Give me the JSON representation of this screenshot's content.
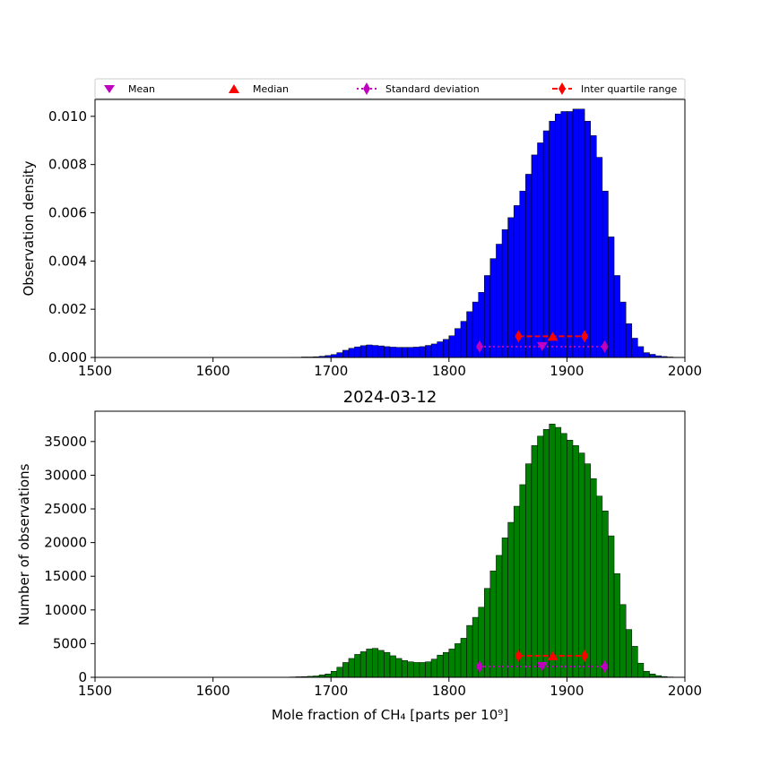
{
  "legend": {
    "mean": "Mean",
    "median": "Median",
    "std": "Standard deviation",
    "iqr": "Inter quartile range"
  },
  "colors": {
    "density_bars": "#0000ff",
    "count_bars": "#008000",
    "mean": "#bf00bf",
    "median": "#ff0000",
    "std": "#bf00bf",
    "iqr": "#ff0000"
  },
  "chart_data": [
    {
      "type": "bar",
      "panel": "density",
      "title": "",
      "xlabel": "",
      "ylabel": "Observation density",
      "xlim": [
        1500,
        2000
      ],
      "ylim": [
        0,
        0.0107
      ],
      "xticks": [
        1500,
        1600,
        1700,
        1800,
        1900,
        2000
      ],
      "yticks": [
        0,
        0.002,
        0.004,
        0.006,
        0.008,
        0.01
      ],
      "ytick_labels": [
        "0.000",
        "0.002",
        "0.004",
        "0.006",
        "0.008",
        "0.010"
      ],
      "bin_width": 5,
      "bins_start": [
        1665,
        1670,
        1675,
        1680,
        1685,
        1690,
        1695,
        1700,
        1705,
        1710,
        1715,
        1720,
        1725,
        1730,
        1735,
        1740,
        1745,
        1750,
        1755,
        1760,
        1765,
        1770,
        1775,
        1780,
        1785,
        1790,
        1795,
        1800,
        1805,
        1810,
        1815,
        1820,
        1825,
        1830,
        1835,
        1840,
        1845,
        1850,
        1855,
        1860,
        1865,
        1870,
        1875,
        1880,
        1885,
        1890,
        1895,
        1900,
        1905,
        1910,
        1915,
        1920,
        1925,
        1930,
        1935,
        1940,
        1945,
        1950,
        1955,
        1960,
        1965,
        1970,
        1975,
        1980,
        1985,
        1990
      ],
      "values": [
        1e-05,
        1e-05,
        2e-05,
        2e-05,
        3e-05,
        5e-05,
        8e-05,
        0.00012,
        0.0002,
        0.0003,
        0.00038,
        0.00044,
        0.00049,
        0.00052,
        0.0005,
        0.00048,
        0.00045,
        0.00043,
        0.00042,
        0.00042,
        0.00042,
        0.00043,
        0.00045,
        0.0005,
        0.00056,
        0.00065,
        0.00075,
        0.0009,
        0.0012,
        0.0015,
        0.0019,
        0.0023,
        0.0027,
        0.0034,
        0.0041,
        0.0047,
        0.0053,
        0.0058,
        0.0063,
        0.0069,
        0.0076,
        0.0084,
        0.0089,
        0.0094,
        0.0098,
        0.0101,
        0.0102,
        0.0102,
        0.0103,
        0.0103,
        0.0098,
        0.0092,
        0.0083,
        0.0069,
        0.005,
        0.0034,
        0.0023,
        0.0014,
        0.0008,
        0.00045,
        0.0002,
        0.00013,
        7e-05,
        4e-05,
        2e-05,
        1e-05
      ],
      "stats": {
        "mean": 1879,
        "median": 1888,
        "std_range": [
          1826,
          1932
        ],
        "iqr_range": [
          1859,
          1915
        ],
        "mean_y": 0.00045,
        "std_y": 0.00045,
        "median_y": 0.00088,
        "iqr_y": 0.00088
      }
    },
    {
      "type": "bar",
      "panel": "count",
      "title": "2024-03-12",
      "xlabel": "Mole fraction of CH₄ [parts per 10⁹]",
      "ylabel": "Number of observations",
      "xlim": [
        1500,
        2000
      ],
      "ylim": [
        0,
        39500
      ],
      "xticks": [
        1500,
        1600,
        1700,
        1800,
        1900,
        2000
      ],
      "yticks": [
        0,
        5000,
        10000,
        15000,
        20000,
        25000,
        30000,
        35000
      ],
      "ytick_labels": [
        "0",
        "5000",
        "10000",
        "15000",
        "20000",
        "25000",
        "30000",
        "35000"
      ],
      "bin_width": 5,
      "bins_start": [
        1665,
        1670,
        1675,
        1680,
        1685,
        1690,
        1695,
        1700,
        1705,
        1710,
        1715,
        1720,
        1725,
        1730,
        1735,
        1740,
        1745,
        1750,
        1755,
        1760,
        1765,
        1770,
        1775,
        1780,
        1785,
        1790,
        1795,
        1800,
        1805,
        1810,
        1815,
        1820,
        1825,
        1830,
        1835,
        1840,
        1845,
        1850,
        1855,
        1860,
        1865,
        1870,
        1875,
        1880,
        1885,
        1890,
        1895,
        1900,
        1905,
        1910,
        1915,
        1920,
        1925,
        1930,
        1935,
        1940,
        1945,
        1950,
        1955,
        1960,
        1965,
        1970,
        1975,
        1980,
        1985,
        1990
      ],
      "values": [
        50,
        80,
        100,
        150,
        200,
        350,
        500,
        900,
        1500,
        2200,
        2800,
        3400,
        3800,
        4200,
        4300,
        4000,
        3700,
        3200,
        2800,
        2500,
        2300,
        2200,
        2200,
        2300,
        2700,
        3300,
        3700,
        4200,
        5000,
        5800,
        7700,
        8900,
        10400,
        13200,
        15800,
        18100,
        20700,
        23000,
        25400,
        28600,
        31700,
        34400,
        35800,
        36800,
        37600,
        37100,
        36200,
        35200,
        34400,
        33300,
        31700,
        29500,
        26900,
        24700,
        21000,
        15400,
        10800,
        7100,
        4600,
        2100,
        900,
        500,
        250,
        120,
        50,
        20
      ],
      "stats": {
        "mean": 1879,
        "median": 1888,
        "std_range": [
          1826,
          1932
        ],
        "iqr_range": [
          1859,
          1915
        ],
        "mean_y": 1600,
        "std_y": 1600,
        "median_y": 3200,
        "iqr_y": 3200
      }
    }
  ]
}
